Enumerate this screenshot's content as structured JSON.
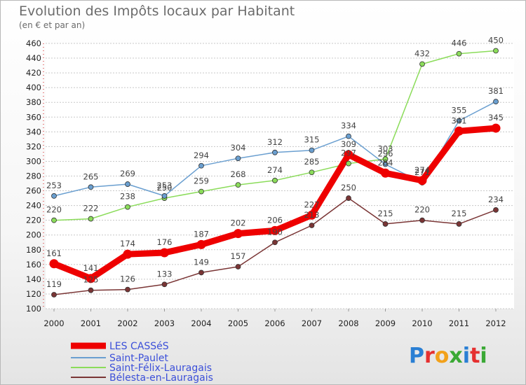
{
  "chart_data": {
    "type": "line",
    "title": "Evolution des Impôts locaux par Habitant",
    "subtitle": "(en € et par an)",
    "x": [
      "2000",
      "2001",
      "2002",
      "2003",
      "2004",
      "2005",
      "2006",
      "2007",
      "2008",
      "2009",
      "2010",
      "2011",
      "2012"
    ],
    "ylim": [
      100,
      460
    ],
    "yticks": [
      100,
      120,
      140,
      160,
      180,
      200,
      220,
      240,
      260,
      280,
      300,
      320,
      340,
      360,
      380,
      400,
      420,
      440,
      460
    ],
    "grid": true,
    "series": [
      {
        "name": "LES CASSéS",
        "color": "#ee0000",
        "values": [
          161,
          141,
          174,
          176,
          187,
          202,
          206,
          227,
          309,
          284,
          274,
          341,
          345
        ]
      },
      {
        "name": "Saint-Paulet",
        "color": "#6a9fd0",
        "values": [
          253,
          265,
          269,
          253,
          294,
          304,
          312,
          315,
          334,
          296,
          271,
          355,
          381
        ]
      },
      {
        "name": "Saint-Félix-Lauragais",
        "color": "#8bdc5a",
        "values": [
          220,
          222,
          238,
          250,
          259,
          268,
          274,
          285,
          297,
          303,
          432,
          446,
          450
        ]
      },
      {
        "name": "Bélesta-en-Lauragais",
        "color": "#7a3535",
        "values": [
          119,
          125,
          126,
          133,
          149,
          157,
          190,
          213,
          250,
          215,
          220,
          215,
          234
        ]
      }
    ]
  },
  "logo": {
    "text": "Proxiti"
  }
}
